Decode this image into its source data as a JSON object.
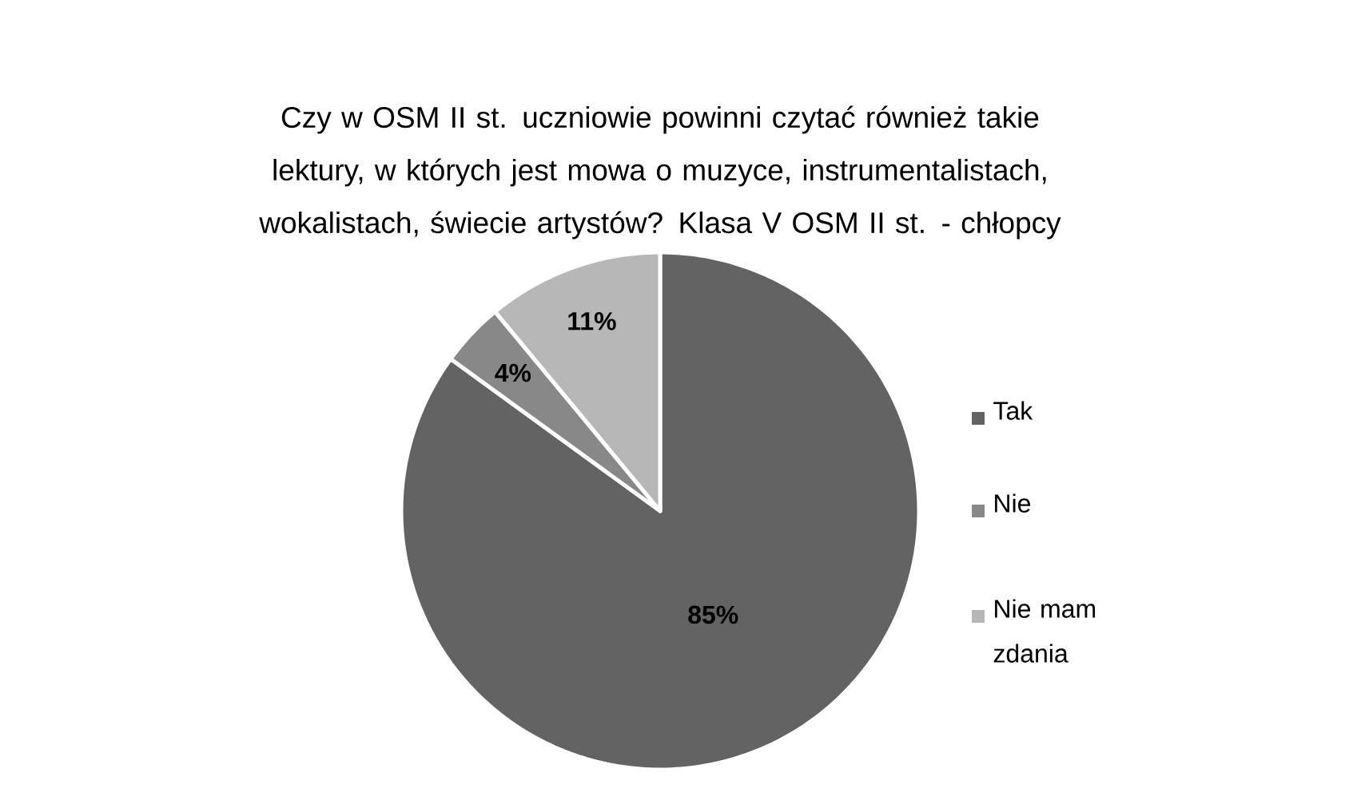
{
  "chart_data": {
    "type": "pie",
    "title": "Czy w OSM II st. uczniowie powinni czytać również takie lektury, w których jest mowa o muzyce, instrumentalistach, wokalistach, świecie artystów? Klasa V OSM II st. - chłopcy",
    "categories": [
      "Tak",
      "Nie",
      "Nie mam zdania"
    ],
    "values": [
      85,
      4,
      11
    ],
    "colors": [
      "#636363",
      "#888888",
      "#b7b7b7"
    ],
    "value_labels": [
      "85%",
      "4%",
      "11%"
    ],
    "legend": "right"
  }
}
